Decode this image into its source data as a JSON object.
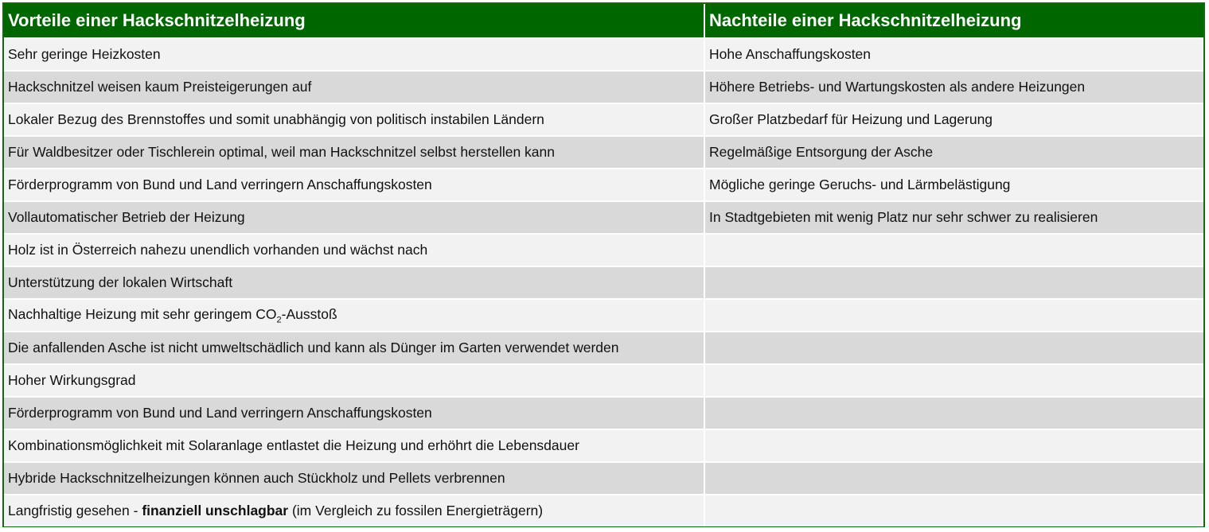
{
  "table": {
    "headers": [
      "Vorteile einer Hackschnitzelheizung",
      "Nachteile einer Hackschnitzelheizung"
    ],
    "rows": [
      [
        "Sehr geringe Heizkosten",
        "Hohe Anschaffungskosten"
      ],
      [
        "Hackschnitzel weisen kaum Preisteigerungen auf",
        "Höhere Betriebs- und Wartungskosten als andere Heizungen"
      ],
      [
        "Lokaler Bezug des Brennstoffes und somit unabhängig von politisch instabilen Ländern",
        "Großer Platzbedarf für Heizung und Lagerung"
      ],
      [
        "Für Waldbesitzer oder Tischlerein optimal, weil man Hackschnitzel selbst herstellen kann",
        "Regelmäßige Entsorgung der Asche"
      ],
      [
        "Förderprogramm von Bund und Land verringern Anschaffungskosten",
        "Mögliche geringe Geruchs- und Lärmbelästigung"
      ],
      [
        "Vollautomatischer Betrieb der Heizung",
        "In Stadtgebieten mit wenig Platz nur sehr schwer zu realisieren"
      ],
      [
        "Holz ist in Österreich nahezu unendlich vorhanden und wächst nach",
        ""
      ],
      [
        "Unterstützung der lokalen Wirtschaft",
        ""
      ],
      [
        "",
        ""
      ],
      [
        "Die anfallenden Asche ist nicht umweltschädlich und kann als Dünger im Garten verwendet werden",
        ""
      ],
      [
        "Hoher Wirkungsgrad",
        ""
      ],
      [
        "Förderprogramm von Bund und Land verringern Anschaffungskosten",
        ""
      ],
      [
        "Kombinationsmöglichkeit mit Solaranlage entlastet die Heizung und erhöhrt die Lebensdauer",
        ""
      ],
      [
        "Hybride Hackschnitzelheizungen können auch Stückholz und Pellets verbrennen",
        ""
      ],
      [
        "",
        ""
      ]
    ],
    "co2_row": {
      "prefix": "Nachhaltige Heizung mit sehr geringem CO",
      "subscript": "2",
      "suffix": "-Ausstoß"
    },
    "last_row": {
      "prefix": "Langfristig gesehen - ",
      "bold": "finanziell unschlagbar",
      "suffix": " (im Vergleich zu fossilen Energieträgern)"
    },
    "colors": {
      "header_bg": "#006600",
      "row_light": "#f2f2f2",
      "row_dark": "#d9d9d9"
    }
  }
}
